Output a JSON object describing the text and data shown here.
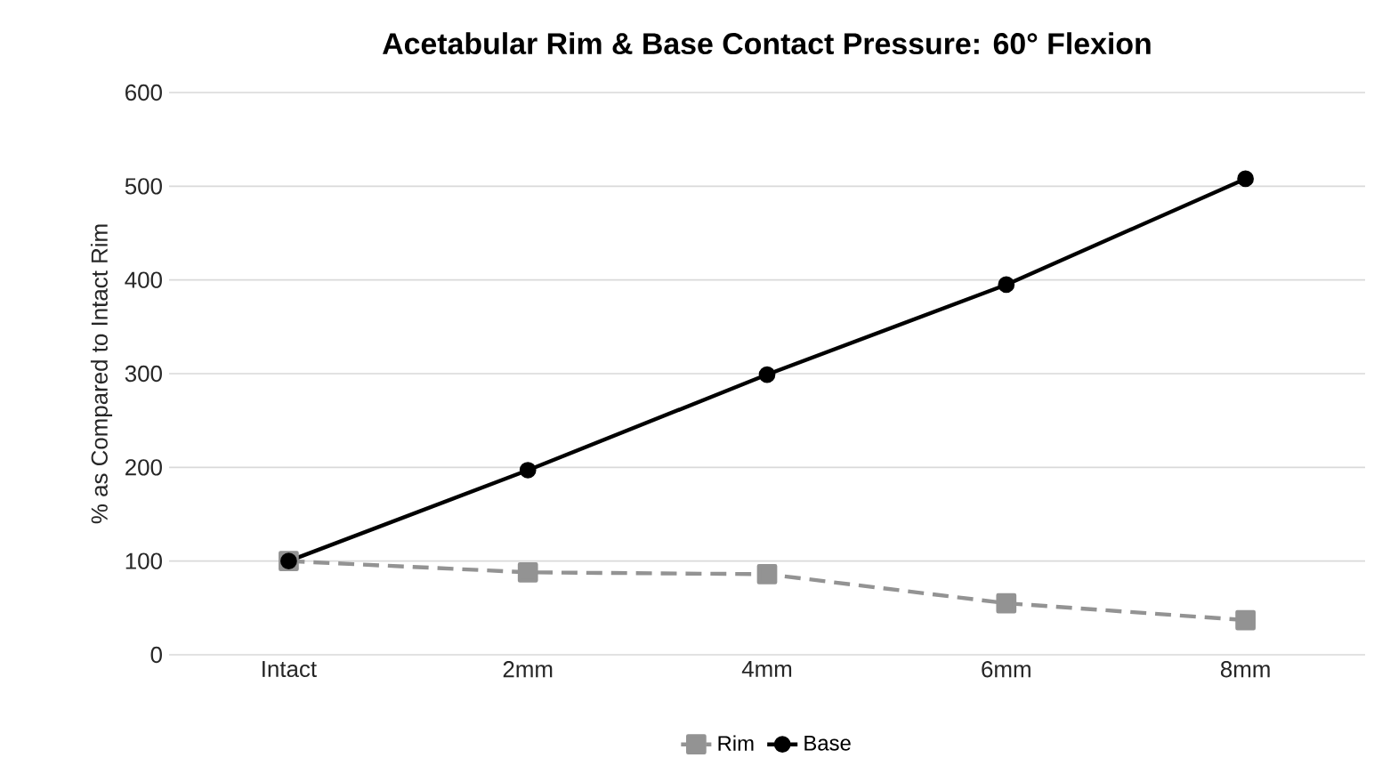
{
  "chart_data": {
    "type": "line",
    "title": "Acetabular Rim & Base Contact Pressure: 60° Flexion",
    "ylabel": "% as Compared to Intact Rim",
    "categories": [
      "Intact",
      "2mm",
      "4mm",
      "6mm",
      "8mm"
    ],
    "series": [
      {
        "name": "Rim",
        "color": "#939393",
        "marker": "square",
        "line_style": "dashed",
        "values": [
          100,
          88,
          86,
          55,
          37
        ]
      },
      {
        "name": "Base",
        "color": "#000000",
        "marker": "circle",
        "line_style": "solid",
        "values": [
          100,
          197,
          299,
          395,
          508
        ]
      }
    ],
    "ylim": [
      0,
      600
    ],
    "yticks": [
      0,
      100,
      200,
      300,
      400,
      500,
      600
    ],
    "grid": "y",
    "legend": "bottom"
  }
}
